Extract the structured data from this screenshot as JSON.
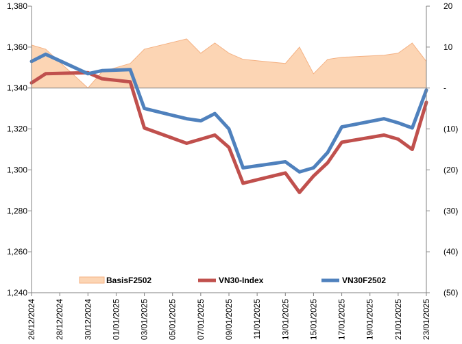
{
  "chart_data": {
    "type": "line",
    "x": [
      "26/12/2024",
      "27/12/2024",
      "30/12/2024",
      "31/12/2024",
      "02/01/2025",
      "03/01/2025",
      "06/01/2025",
      "07/01/2025",
      "08/01/2025",
      "09/01/2025",
      "10/01/2025",
      "13/01/2025",
      "14/01/2025",
      "15/01/2025",
      "16/01/2025",
      "17/01/2025",
      "20/01/2025",
      "21/01/2025",
      "22/01/2025",
      "23/01/2025"
    ],
    "x_tick_labels": [
      "26/12/2024",
      "28/12/2024",
      "30/12/2024",
      "01/01/2025",
      "03/01/2025",
      "05/01/2025",
      "07/01/2025",
      "09/01/2025",
      "11/01/2025",
      "13/01/2025",
      "15/01/2025",
      "17/01/2025",
      "19/01/2025",
      "21/01/2025",
      "23/01/2025"
    ],
    "x_range": [
      "26/12/2024",
      "23/01/2025"
    ],
    "y_left": {
      "range": [
        1240,
        1380
      ],
      "step": 20,
      "tick_labels": [
        "1,240",
        "1,260",
        "1,280",
        "1,300",
        "1,320",
        "1,340",
        "1,360",
        "1,380"
      ]
    },
    "y_right": {
      "range": [
        -50,
        20
      ],
      "step": 10,
      "tick_labels": [
        "(50)",
        "(40)",
        "(30)",
        "(20)",
        "(10)",
        "-",
        "10",
        "20"
      ]
    },
    "series": [
      {
        "name": "BasisF2502",
        "kind": "area",
        "axis": "right",
        "color": "#fcd5b4",
        "edge_color": "#f4b183",
        "values": [
          10.5,
          9.5,
          0,
          4,
          6,
          9.5,
          12,
          8.5,
          11,
          8.5,
          7,
          6,
          10,
          3.5,
          7,
          7.5,
          8,
          8.5,
          11,
          6.5
        ]
      },
      {
        "name": "VN30-Index",
        "kind": "line",
        "axis": "left",
        "color": "#c0504d",
        "values": [
          1342.5,
          1347,
          1347.5,
          1344.5,
          1343,
          1320.5,
          1313,
          1315,
          1317,
          1311,
          1293.5,
          1298.5,
          1289,
          1297,
          1303.5,
          1313.5,
          1317,
          1315,
          1310,
          1333
        ]
      },
      {
        "name": "VN30F2502",
        "kind": "line",
        "axis": "left",
        "color": "#4f81bd",
        "values": [
          1353,
          1356.5,
          1347,
          1348.5,
          1349,
          1330,
          1325,
          1324,
          1327.5,
          1320,
          1301,
          1304,
          1299,
          1301,
          1308.5,
          1321,
          1325,
          1323,
          1320.5,
          1339
        ]
      }
    ],
    "legend": {
      "placement": "bottom"
    },
    "grid": false
  }
}
